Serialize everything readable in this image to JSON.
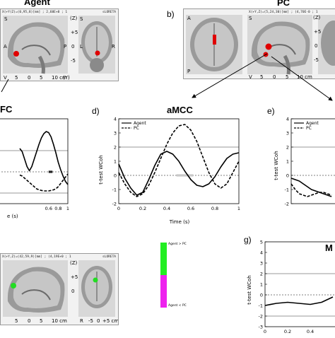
{
  "panels": {
    "agent": {
      "title": "Agent",
      "header": "X(+Y(Z)=(0,95,8)[mm] ; 2,60E+0 ; 1",
      "brand": "sLORETA"
    },
    "b": {
      "letter": "b)",
      "title": "PC",
      "header": "X(+Y,Z)=(5,24,30)[mm] ; (4,70E-0 ; 1"
    },
    "c": {
      "title": "FC",
      "xlabel": "e (s)"
    },
    "d": {
      "letter": "d)",
      "title": "aMCC",
      "ylabel": "t-test WCoh",
      "xlabel": "Time (s)"
    },
    "e": {
      "letter": "e)",
      "ylabel": "t-test WCoh"
    },
    "f": {
      "header": "X(+Y,Z)=(42,59,9)[mm] ; (4,19E+0 ; 1",
      "brand": "sLORETA"
    },
    "g": {
      "letter": "g)",
      "title": "M",
      "ylabel": "t-test WCoh"
    }
  },
  "colorbar": {
    "top_label": "Agent > PC",
    "bottom_label": "Agent < PC",
    "top_color": "#22ee22",
    "bottom_color": "#ee22ee"
  },
  "brain_ticks": {
    "sag_bottom": [
      "V",
      "5",
      "0",
      "5",
      "10 cm",
      "(Y)"
    ],
    "cor_bottom": [
      "R",
      "-5",
      "0",
      "+5 cm",
      "(X)"
    ],
    "side_top": [
      "(Z)",
      "+5",
      "0",
      "-5"
    ],
    "side_letters": [
      "S",
      "A",
      "P",
      "I",
      "L",
      "R"
    ]
  },
  "chart_data": [
    {
      "type": "line",
      "panel": "c",
      "x": [
        0,
        0.05,
        0.1,
        0.15,
        0.2,
        0.25,
        0.3,
        0.35,
        0.4,
        0.45,
        0.5,
        0.55,
        0.6,
        0.65,
        0.7,
        0.75,
        0.8,
        0.85,
        0.9,
        0.95,
        1.0
      ],
      "series": [
        {
          "name": "Agent",
          "style": "solid",
          "values": [
            2.2,
            1.9,
            1.2,
            0.5,
            0.1,
            0.5,
            1.2,
            1.9,
            2.6,
            3.2,
            3.6,
            3.8,
            3.7,
            3.3,
            2.6,
            1.8,
            0.9,
            0.2,
            -0.4,
            -0.9,
            -1.2
          ]
        },
        {
          "name": "PC",
          "style": "dashed",
          "values": [
            -0.3,
            -0.4,
            -0.6,
            -0.8,
            -1.0,
            -1.2,
            -1.4,
            -1.6,
            -1.7,
            -1.75,
            -1.8,
            -1.8,
            -1.8,
            -1.75,
            -1.7,
            -1.6,
            -1.4,
            -1.1,
            -0.8,
            -0.5,
            -0.2
          ]
        }
      ],
      "sig_bars": [
        {
          "x0": 0.6,
          "x1": 0.68,
          "color": "#222222"
        }
      ],
      "xticks": [
        "0.6",
        "0.8",
        "1"
      ],
      "ylim": [
        -3,
        5
      ]
    },
    {
      "type": "line",
      "panel": "d",
      "x": [
        0,
        0.05,
        0.1,
        0.15,
        0.2,
        0.25,
        0.3,
        0.35,
        0.4,
        0.45,
        0.5,
        0.55,
        0.6,
        0.65,
        0.7,
        0.75,
        0.8,
        0.85,
        0.9,
        0.95,
        1.0
      ],
      "series": [
        {
          "name": "Agent",
          "style": "solid",
          "values": [
            0.8,
            -0.2,
            -0.9,
            -1.4,
            -1.2,
            -0.3,
            0.7,
            1.5,
            1.7,
            1.5,
            1.0,
            0.3,
            -0.3,
            -0.7,
            -0.8,
            -0.6,
            -0.1,
            0.6,
            1.2,
            1.5,
            1.6
          ]
        },
        {
          "name": "PC",
          "style": "dashed",
          "values": [
            0.2,
            -0.6,
            -1.2,
            -1.5,
            -1.3,
            -0.7,
            0.2,
            1.2,
            2.2,
            3.0,
            3.5,
            3.6,
            3.2,
            2.4,
            1.3,
            0.2,
            -0.6,
            -0.9,
            -0.6,
            0.2,
            1.0
          ]
        }
      ],
      "sig_bars": [
        {
          "x0": 0.48,
          "x1": 0.62,
          "color": "#c8c8c8"
        }
      ],
      "xticks": [
        "0",
        "0.2",
        "0.4",
        "0.6",
        "0.8",
        "1"
      ],
      "yticks": [
        "-2",
        "-1",
        "0",
        "1",
        "2",
        "3",
        "4"
      ],
      "ylim": [
        -2,
        4
      ]
    },
    {
      "type": "line",
      "panel": "e",
      "x": [
        0,
        0.1,
        0.2,
        0.3,
        0.4,
        0.5,
        0.6,
        0.7,
        0.8,
        0.9,
        1.0
      ],
      "series": [
        {
          "name": "Agent",
          "style": "solid",
          "values": [
            -0.2,
            -0.3,
            -0.4,
            -0.6,
            -0.8,
            -1.0,
            -1.1,
            -1.2,
            -1.3,
            -1.4,
            -1.5
          ]
        },
        {
          "name": "PC",
          "style": "dashed",
          "values": [
            -0.6,
            -1.0,
            -1.3,
            -1.4,
            -1.5,
            -1.4,
            -1.3,
            -1.2,
            -1.2,
            -1.3,
            -1.4
          ]
        }
      ],
      "yticks": [
        "-2",
        "-1",
        "0",
        "1",
        "2",
        "3",
        "4"
      ],
      "ylim": [
        -2,
        4
      ]
    },
    {
      "type": "line",
      "panel": "g",
      "x": [
        0,
        0.1,
        0.2,
        0.3,
        0.4,
        0.5,
        0.6
      ],
      "series": [
        {
          "name": "",
          "style": "solid",
          "values": [
            -1.0,
            -0.8,
            -0.7,
            -0.8,
            -0.9,
            -0.7,
            -0.2
          ]
        }
      ],
      "xticks": [
        "0",
        "0.2",
        "0.4"
      ],
      "yticks": [
        "-3",
        "-2",
        "-1",
        "0",
        "1",
        "2",
        "3",
        "4",
        "5"
      ],
      "ylim": [
        -3,
        5
      ]
    }
  ]
}
